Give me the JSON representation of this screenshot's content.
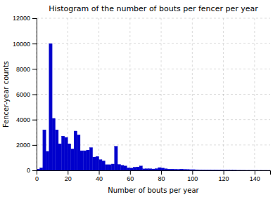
{
  "chart_data": {
    "type": "histogram",
    "title": "Histogram of the number of bouts per fencer per year",
    "xlabel": "Number of bouts per year",
    "ylabel": "Fencer-year counts",
    "bins": [
      0,
      2,
      4,
      6,
      8,
      10,
      12,
      14,
      16,
      18,
      20,
      22,
      24,
      26,
      28,
      30,
      32,
      34,
      36,
      38,
      40,
      42,
      44,
      46,
      48,
      50,
      52,
      54,
      56,
      58,
      60,
      62,
      64,
      66,
      68,
      70,
      72,
      74,
      76,
      78,
      80,
      82,
      84,
      86,
      88,
      90,
      92,
      94,
      96,
      98,
      100,
      102,
      104,
      106,
      108,
      110,
      112,
      114,
      116,
      118,
      120,
      122,
      124,
      126,
      128,
      130,
      132,
      134,
      136,
      138,
      140,
      142,
      144,
      146,
      148,
      150
    ],
    "values": [
      100,
      200,
      3200,
      1500,
      10000,
      4100,
      3200,
      2100,
      2700,
      2600,
      2100,
      1700,
      3100,
      2800,
      1550,
      1550,
      1600,
      1800,
      1050,
      1100,
      850,
      750,
      450,
      450,
      500,
      1900,
      470,
      400,
      350,
      200,
      180,
      250,
      270,
      350,
      120,
      130,
      130,
      110,
      140,
      220,
      180,
      130,
      100,
      100,
      90,
      80,
      100,
      80,
      70,
      60,
      60,
      50,
      40,
      35,
      30,
      30,
      25,
      25,
      20,
      20,
      15,
      15,
      10,
      10,
      8,
      8,
      7,
      5,
      5,
      4,
      4,
      3,
      3,
      2,
      2
    ],
    "color": "#0000cc",
    "xlim": [
      0,
      150
    ],
    "ylim": [
      0,
      12000
    ],
    "xticks": [
      0,
      20,
      40,
      60,
      80,
      100,
      120,
      140
    ],
    "yticks": [
      0,
      2000,
      4000,
      6000,
      8000,
      10000,
      12000
    ],
    "grid": true
  }
}
